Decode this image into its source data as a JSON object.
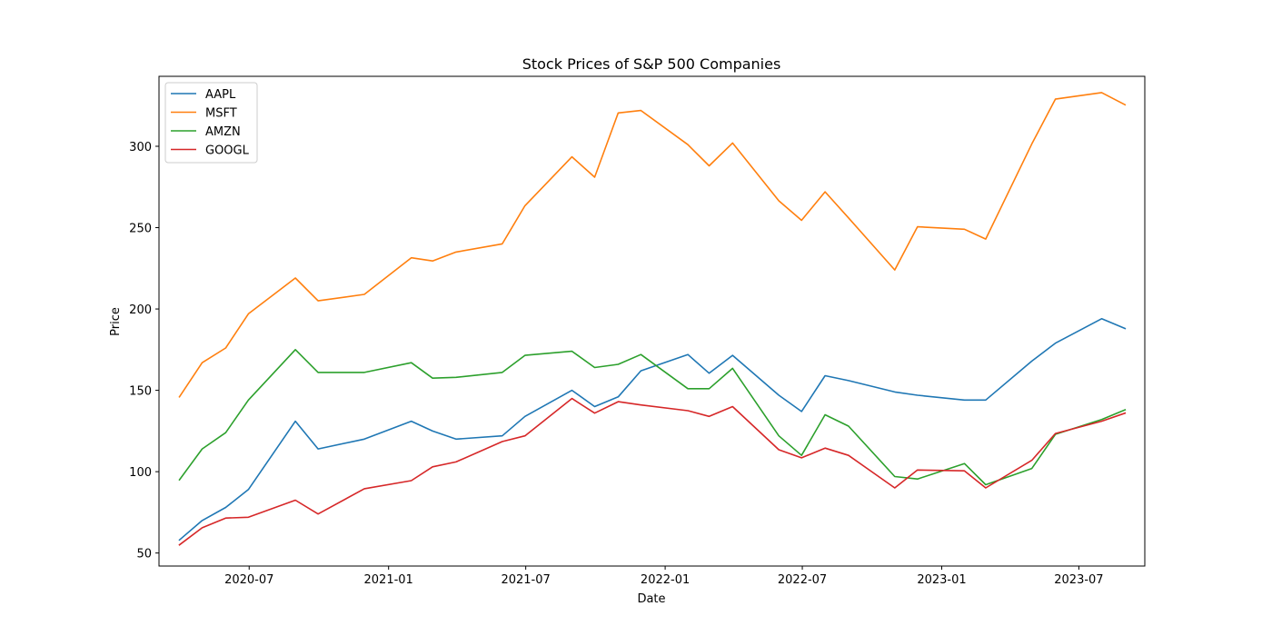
{
  "chart_data": {
    "type": "line",
    "title": "Stock Prices of S&P 500 Companies",
    "xlabel": "Date",
    "ylabel": "Price",
    "ylim": [
      42,
      343
    ],
    "xlim": [
      "2020-03-04",
      "2023-09-26"
    ],
    "x_ticks": [
      "2020-07",
      "2021-01",
      "2021-07",
      "2022-01",
      "2022-07",
      "2023-01",
      "2023-07"
    ],
    "y_ticks": [
      50,
      100,
      150,
      200,
      250,
      300
    ],
    "grid": false,
    "legend_position": "upper-left",
    "dates": [
      "2020-03-31",
      "2020-04-30",
      "2020-05-31",
      "2020-06-30",
      "2020-08-31",
      "2020-09-30",
      "2020-11-30",
      "2021-01-31",
      "2021-02-28",
      "2021-03-31",
      "2021-05-31",
      "2021-06-30",
      "2021-08-31",
      "2021-09-30",
      "2021-10-31",
      "2021-11-30",
      "2022-01-31",
      "2022-02-28",
      "2022-03-31",
      "2022-05-31",
      "2022-06-30",
      "2022-07-31",
      "2022-08-31",
      "2022-10-31",
      "2022-11-30",
      "2023-01-31",
      "2023-02-28",
      "2023-04-30",
      "2023-05-31",
      "2023-07-31",
      "2023-08-31"
    ],
    "series": [
      {
        "name": "AAPL",
        "color": "#1f77b4",
        "values": [
          58,
          70,
          78,
          89,
          131,
          114,
          120,
          131,
          125,
          120,
          122,
          134,
          150,
          140,
          146,
          162,
          172,
          160.5,
          171.5,
          147,
          137,
          159,
          156,
          149,
          147,
          144,
          144,
          168,
          179,
          194,
          188
        ]
      },
      {
        "name": "MSFT",
        "color": "#ff7f0e",
        "values": [
          146,
          167,
          176,
          197,
          219,
          205,
          209,
          231.5,
          229.5,
          235,
          240,
          263.5,
          293.5,
          281,
          320.5,
          322,
          301,
          288,
          302,
          266.5,
          254.5,
          272,
          256,
          224,
          250.5,
          249,
          243,
          301.5,
          329,
          333,
          325.5
        ]
      },
      {
        "name": "AMZN",
        "color": "#2ca02c",
        "values": [
          95,
          114,
          124,
          144,
          175,
          161,
          161,
          167,
          157.5,
          158,
          161,
          171.5,
          174,
          164,
          166,
          172,
          151,
          151,
          163.5,
          122,
          110,
          135,
          128,
          97,
          95.5,
          105,
          92,
          102,
          123,
          132,
          138
        ]
      },
      {
        "name": "GOOGL",
        "color": "#d62728",
        "values": [
          55,
          65.5,
          71.5,
          72,
          82.5,
          74,
          89.5,
          94.5,
          103,
          106,
          118.5,
          122,
          145,
          136,
          143,
          141,
          137.5,
          134,
          140,
          113.5,
          108.5,
          114.5,
          110,
          90,
          101,
          100.5,
          90,
          107,
          123.5,
          131,
          136
        ]
      }
    ]
  }
}
